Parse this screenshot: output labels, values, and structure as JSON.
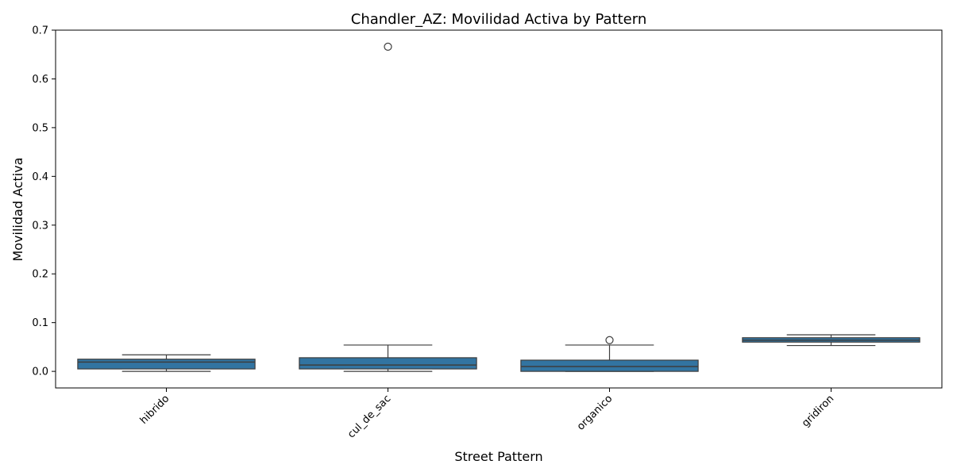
{
  "chart_data": {
    "type": "box",
    "title": "Chandler_AZ: Movilidad Activa by Pattern",
    "xlabel": "Street Pattern",
    "ylabel": "Movilidad Activa",
    "ylim": [
      -0.034,
      0.7
    ],
    "yticks": [
      0.0,
      0.1,
      0.2,
      0.3,
      0.4,
      0.5,
      0.6,
      0.7
    ],
    "ytick_labels": [
      "0.0",
      "0.1",
      "0.2",
      "0.3",
      "0.4",
      "0.5",
      "0.6",
      "0.7"
    ],
    "grid": false,
    "box_color": "#3274a1",
    "edge_color": "#3d3d3d",
    "categories": [
      "hibrido",
      "cul_de_sac",
      "organico",
      "gridiron"
    ],
    "boxes": [
      {
        "whisker_low": 0.0,
        "q1": 0.005,
        "median": 0.019,
        "q3": 0.025,
        "whisker_high": 0.034,
        "outliers": []
      },
      {
        "whisker_low": 0.0,
        "q1": 0.005,
        "median": 0.013,
        "q3": 0.028,
        "whisker_high": 0.054,
        "outliers": [
          0.666
        ]
      },
      {
        "whisker_low": 0.0,
        "q1": 0.0,
        "median": 0.01,
        "q3": 0.023,
        "whisker_high": 0.054,
        "outliers": [
          0.064
        ]
      },
      {
        "whisker_low": 0.053,
        "q1": 0.06,
        "median": 0.064,
        "q3": 0.069,
        "whisker_high": 0.075,
        "outliers": []
      }
    ]
  }
}
